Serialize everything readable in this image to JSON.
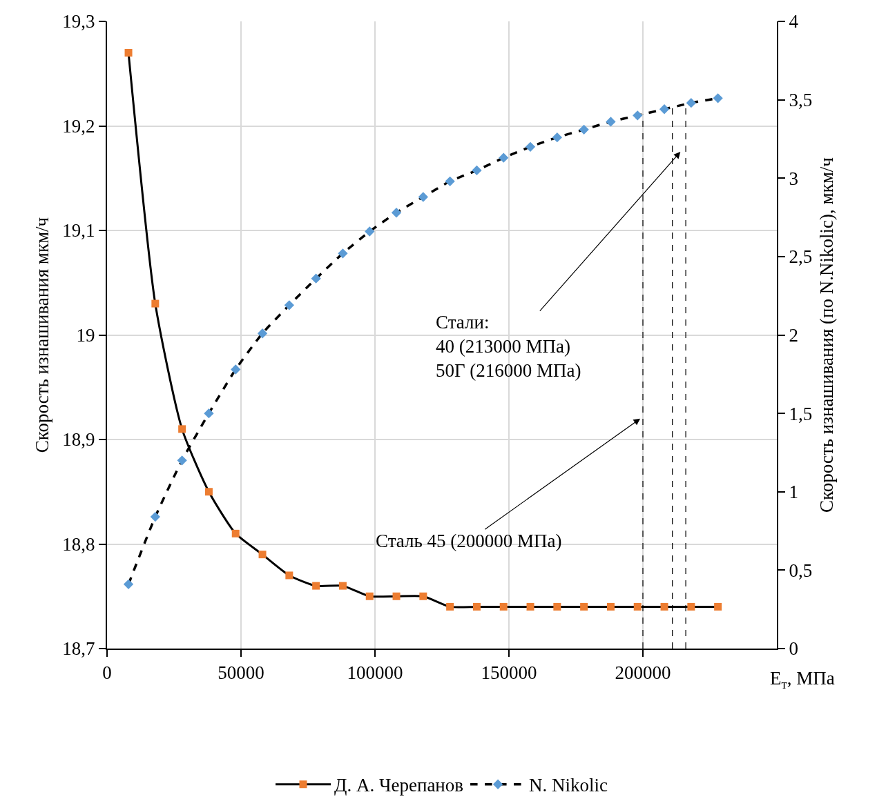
{
  "chart_data": {
    "type": "line",
    "xlabel": "E$_{т}$, МПа",
    "ylabel": "Скорость изнашивания мкм/ч",
    "y2label": "Скорость изнашивания (по N.Nikolic), мкм/ч",
    "x": [
      8000,
      18000,
      28000,
      38000,
      48000,
      58000,
      68000,
      78000,
      88000,
      98000,
      108000,
      118000,
      128000,
      138000,
      148000,
      158000,
      168000,
      178000,
      188000,
      198000,
      208000,
      218000,
      228000
    ],
    "series": [
      {
        "name": "Д. А. Черепанов",
        "color": "#ed7d31",
        "marker": "square",
        "line_style": "solid",
        "values": [
          19.27,
          19.03,
          18.91,
          18.85,
          18.81,
          18.79,
          18.77,
          18.76,
          18.76,
          18.75,
          18.75,
          18.75,
          18.74,
          18.74,
          18.74,
          18.74,
          18.74,
          18.74,
          18.74,
          18.74,
          18.74,
          18.74,
          18.74
        ]
      },
      {
        "name": "N. Nikolic",
        "color": "#5b9bd5",
        "marker": "diamond",
        "line_style": "dashed",
        "axis": "y2",
        "values": [
          0.41,
          0.84,
          1.2,
          1.5,
          1.78,
          2.01,
          2.19,
          2.36,
          2.52,
          2.66,
          2.78,
          2.88,
          2.98,
          3.05,
          3.13,
          3.2,
          3.26,
          3.31,
          3.36,
          3.4,
          3.44,
          3.48,
          3.51
        ]
      }
    ],
    "xlim": [
      0,
      250000
    ],
    "xticks": [
      0,
      50000,
      100000,
      150000,
      200000
    ],
    "ylim": [
      18.7,
      19.3
    ],
    "yticks": [
      {
        "value": 18.7,
        "label": "18,7"
      },
      {
        "value": 18.8,
        "label": "18,8"
      },
      {
        "value": 18.9,
        "label": "18,9"
      },
      {
        "value": 19,
        "label": "19"
      },
      {
        "value": 19.1,
        "label": "19,1"
      },
      {
        "value": 19.2,
        "label": "19,2"
      },
      {
        "value": 19.3,
        "label": "19,3"
      }
    ],
    "y2lim": [
      0,
      4
    ],
    "y2ticks": [
      0,
      {
        "value": 0.5,
        "label": "0,5"
      },
      1,
      {
        "value": 1.5,
        "label": "1,5"
      },
      2,
      {
        "value": 2.5,
        "label": "2,5"
      },
      3,
      {
        "value": 3.5,
        "label": "3,5"
      },
      4
    ],
    "ref_lines": [
      {
        "axis": "x",
        "value": 200000,
        "line_style": "dashed",
        "color": "#000000"
      },
      {
        "axis": "x",
        "value": 211000,
        "line_style": "dashed",
        "color": "#000000"
      },
      {
        "axis": "x",
        "value": 216000,
        "line_style": "dashed",
        "color": "#000000"
      }
    ],
    "annotations": [
      "Стали:\n40 (213000 МПа)\n50Г (216000 МПа)",
      {
        "text": "Сталь 45 (200000 МПа)",
        "x": 199000,
        "y": 18.92
      }
    ],
    "grid": true,
    "legend": "bottom"
  }
}
